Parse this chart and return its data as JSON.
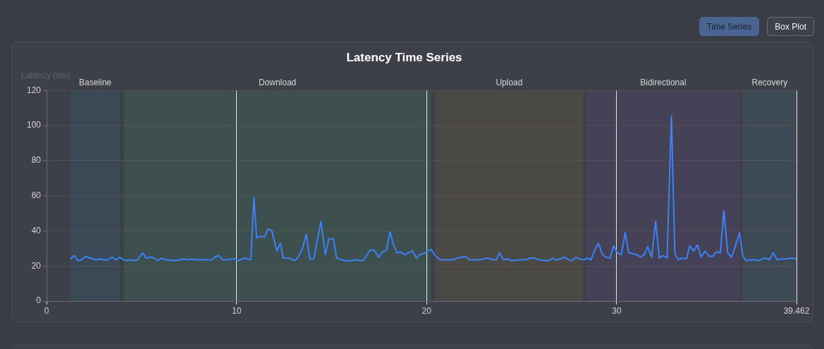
{
  "chart_data": {
    "type": "line",
    "title": "Latency Time Series",
    "ylabel": "Latency (ms)",
    "x": [
      1.26,
      1.45,
      1.65,
      1.83,
      2.05,
      2.27,
      2.61,
      2.86,
      3.04,
      3.23,
      3.44,
      3.64,
      3.85,
      4.06,
      4.24,
      4.43,
      4.6,
      4.8,
      5.06,
      5.24,
      5.47,
      5.65,
      5.86,
      6.06,
      6.27,
      6.83,
      7.2,
      7.42,
      7.64,
      7.83,
      8.32,
      8.7,
      8.84,
      9.07,
      9.28,
      9.5,
      9.75,
      9.94,
      10.07,
      10.42,
      10.75,
      10.91,
      11.06,
      11.26,
      11.47,
      11.65,
      11.84,
      12.12,
      12.3,
      12.46,
      12.77,
      13.07,
      13.26,
      13.44,
      13.67,
      13.85,
      14.06,
      14.44,
      14.67,
      14.86,
      15.09,
      15.26,
      15.67,
      16.04,
      16.25,
      16.65,
      17.02,
      17.25,
      17.46,
      17.68,
      17.89,
      18.07,
      18.26,
      18.44,
      18.63,
      18.85,
      19.25,
      19.46,
      19.65,
      19.83,
      20.05,
      20.23,
      20.48,
      20.73,
      21.16,
      21.35,
      21.65,
      21.84,
      22.02,
      22.27,
      22.77,
      23.23,
      23.48,
      23.67,
      23.84,
      24.04,
      24.25,
      24.47,
      24.93,
      25.23,
      25.46,
      25.67,
      25.91,
      26.43,
      26.63,
      26.81,
      27.02,
      27.25,
      27.46,
      27.64,
      27.85,
      28.04,
      28.26,
      28.44,
      28.65,
      28.84,
      29.04,
      29.25,
      29.43,
      29.65,
      29.84,
      30.03,
      30.24,
      30.45,
      30.63,
      30.82,
      31.04,
      31.26,
      31.45,
      31.63,
      31.84,
      32.05,
      32.24,
      32.44,
      32.65,
      32.88,
      33.06,
      33.24,
      33.45,
      33.67,
      33.85,
      34.05,
      34.25,
      34.44,
      34.65,
      34.87,
      35.06,
      35.24,
      35.45,
      35.64,
      35.84,
      36.05,
      36.26,
      36.46,
      36.64,
      36.83,
      37.04,
      37.26,
      37.47,
      37.66,
      37.84,
      38.03,
      38.24,
      38.44,
      38.64,
      38.85,
      39.24,
      39.462
    ],
    "values": [
      24,
      26,
      23,
      23.5,
      25.5,
      24.5,
      23.5,
      24,
      23.5,
      23.5,
      25,
      23.5,
      25,
      23.5,
      23,
      23.5,
      23,
      23.5,
      27.5,
      24.5,
      25,
      24.5,
      23,
      24.5,
      23.5,
      23,
      24,
      23.5,
      24,
      23.5,
      23.5,
      23.5,
      25,
      26,
      23.5,
      23.5,
      24,
      24,
      23,
      24.5,
      23.5,
      59,
      36,
      37,
      36.5,
      41,
      40.5,
      28.5,
      33,
      24.5,
      24.5,
      23,
      25.5,
      29,
      38,
      24,
      24,
      45.5,
      26.5,
      35.5,
      35.5,
      24.5,
      23,
      23,
      23.5,
      23,
      29,
      29,
      25,
      28,
      29,
      39.5,
      32,
      27.5,
      28,
      26.5,
      28.5,
      24.5,
      26.5,
      27,
      28.5,
      29.5,
      25.5,
      23.5,
      23.5,
      23.5,
      24.5,
      25,
      25.5,
      23.5,
      23.5,
      24.5,
      23.5,
      23.5,
      27.5,
      23.5,
      24,
      23,
      23.5,
      23.5,
      24.5,
      24.5,
      23.5,
      23,
      24.5,
      23.5,
      24,
      25,
      23.5,
      23,
      25,
      24,
      23.5,
      24.5,
      23.5,
      29,
      33,
      26.5,
      25,
      24.5,
      31.5,
      27.5,
      26.5,
      39,
      27.5,
      27,
      26.5,
      25,
      26.5,
      31,
      25,
      45.5,
      24.5,
      26,
      24.5,
      105.5,
      27,
      23.5,
      24.5,
      24,
      31.5,
      28.5,
      32,
      25,
      28.5,
      25.5,
      25.5,
      28,
      27.5,
      51.5,
      27.5,
      25,
      32,
      39,
      25.5,
      23,
      23.5,
      23.5,
      23,
      24,
      24.5,
      23.5,
      27.5,
      23.5,
      24,
      24,
      24.5,
      24
    ],
    "color": "#3b82f6",
    "marker": "none",
    "line_style": "solid",
    "xlim": [
      0,
      39.462
    ],
    "xticks": [
      0,
      10,
      20,
      30,
      39.462
    ],
    "ylim": [
      0,
      120
    ],
    "yticks": [
      0,
      20,
      40,
      60,
      80,
      100,
      120
    ],
    "grid": true,
    "bands": [
      {
        "axis": "x",
        "from": 1.26,
        "to": 3.86,
        "label": "Baseline",
        "color": "#3b4957"
      },
      {
        "axis": "x",
        "from": 4.07,
        "to": 20.23,
        "label": "Download",
        "color": "#3d4f4f"
      },
      {
        "axis": "x",
        "from": 20.45,
        "to": 28.24,
        "label": "Upload",
        "color": "#4a4946"
      },
      {
        "axis": "x",
        "from": 28.41,
        "to": 36.49,
        "label": "Bidirectional",
        "color": "#454257"
      },
      {
        "axis": "x",
        "from": 36.63,
        "to": 39.462,
        "label": "Recovery",
        "color": "#3d4a56"
      }
    ],
    "annotations": [
      "Time Series",
      "Box Plot"
    ]
  }
}
